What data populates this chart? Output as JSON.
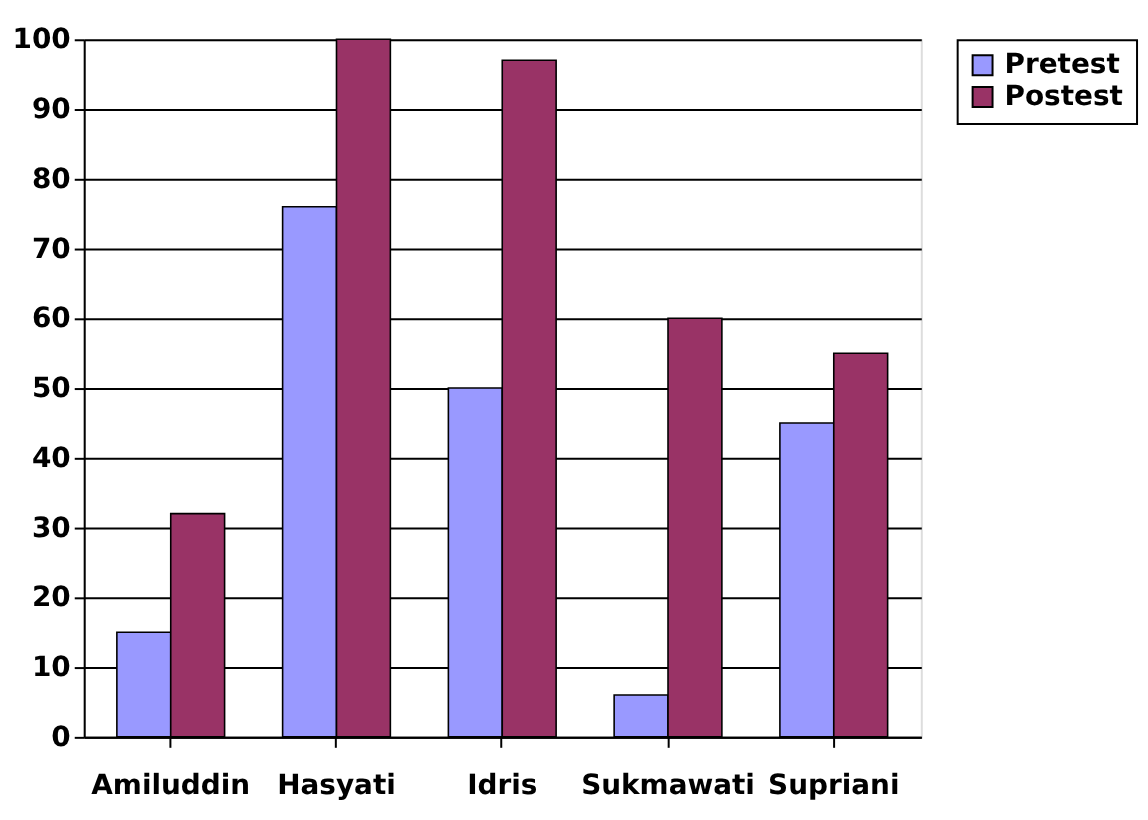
{
  "chart_data": {
    "type": "bar",
    "categories": [
      "Amiluddin",
      "Hasyati",
      "Idris",
      "Sukmawati",
      "Supriani"
    ],
    "series": [
      {
        "name": "Pretest",
        "color": "#9999ff",
        "values": [
          15,
          76,
          50,
          6,
          45
        ]
      },
      {
        "name": "Postest",
        "color": "#993366",
        "values": [
          32,
          100,
          97,
          60,
          55
        ]
      }
    ],
    "ylim": [
      0,
      100
    ],
    "yticks": [
      0,
      10,
      20,
      30,
      40,
      50,
      60,
      70,
      80,
      90,
      100
    ],
    "grid": "y",
    "legend": "right"
  }
}
